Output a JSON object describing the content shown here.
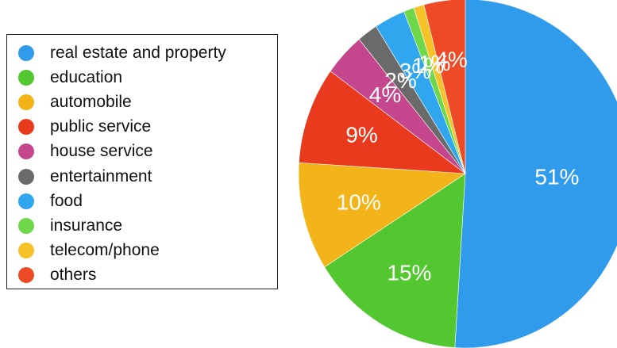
{
  "chart_data": {
    "type": "pie",
    "title": "",
    "legend_position": "left",
    "slices": [
      {
        "label": "real estate and property",
        "value": 51,
        "display": "51%",
        "color": "#2f9bea"
      },
      {
        "label": "education",
        "value": 15,
        "display": "15%",
        "color": "#52c72f"
      },
      {
        "label": "automobile",
        "value": 10,
        "display": "10%",
        "color": "#f2b418"
      },
      {
        "label": "public service",
        "value": 9,
        "display": "9%",
        "color": "#ea3a1e"
      },
      {
        "label": "house service",
        "value": 4,
        "display": "4%",
        "color": "#c4468c"
      },
      {
        "label": "entertainment",
        "value": 2,
        "display": "2%",
        "color": "#6a6a6a"
      },
      {
        "label": "food",
        "value": 3,
        "display": "3%",
        "color": "#2fa6ee"
      },
      {
        "label": "insurance",
        "value": 1,
        "display": "1%",
        "color": "#6ed84a"
      },
      {
        "label": "telecom/phone",
        "value": 1,
        "display": "1%",
        "color": "#f6c22a"
      },
      {
        "label": "others",
        "value": 4,
        "display": "4%",
        "color": "#ef4a26"
      }
    ]
  }
}
